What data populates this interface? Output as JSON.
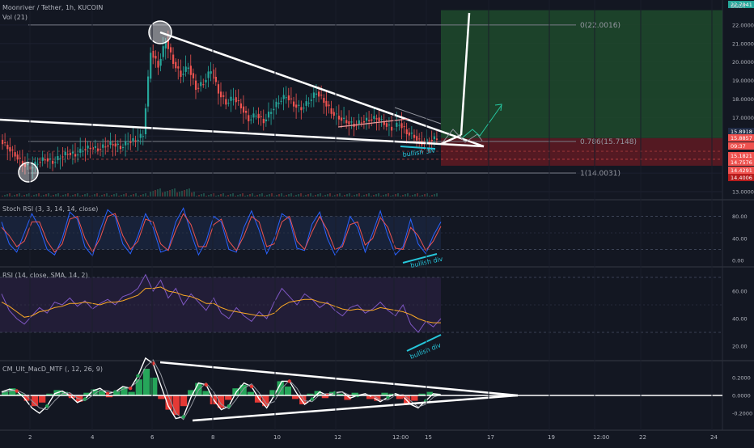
{
  "header": {
    "symbol": "Moonriver / Tether, 1h, KUCOIN",
    "volume": "Vol (21)",
    "currency": "USDT"
  },
  "colors": {
    "background": "#131722",
    "up": "#26a69a",
    "down": "#ef5350",
    "white_lines": "#ffffff",
    "fib_level": "#787b86",
    "target_zone": "#1e4a2c",
    "stop_zone": "#5c1a22",
    "stoch_k": "#2962ff",
    "stoch_d": "#ef5350",
    "rsi": "#7e57c2",
    "rsi_ma": "#f9a825",
    "annotation": "#26c6da",
    "macd_line": "#ffffff"
  },
  "chart_data": [
    {
      "type": "candlestick",
      "name": "price",
      "x_ticks": [
        "2",
        "4",
        "6",
        "8",
        "10",
        "12",
        "12:00",
        "15",
        "17",
        "19",
        "12:00",
        "22",
        "24"
      ],
      "y_ticks": [
        13.0,
        14.0,
        15.0,
        16.0,
        17.0,
        18.0,
        19.0,
        20.0,
        21.0,
        22.0
      ],
      "y_range": [
        13.0,
        22.8
      ],
      "price_labels": [
        {
          "text": "22.7941",
          "role": "target"
        },
        {
          "text": "15.8918",
          "role": "current"
        },
        {
          "text": "15.8857",
          "role": "entry"
        },
        {
          "text": "09:37",
          "role": "countdown"
        },
        {
          "text": "15.1821",
          "role": "level"
        },
        {
          "text": "14.7576",
          "role": "level"
        },
        {
          "text": "14.4291",
          "role": "level"
        },
        {
          "text": "14.4006",
          "role": "stop"
        }
      ],
      "fib_levels": [
        {
          "label": "0(22.0016)",
          "value": 22.0016
        },
        {
          "label": "0.786(15.7148)",
          "value": 15.7148
        },
        {
          "label": "1(14.0031)",
          "value": 14.0031
        }
      ],
      "annotations": [
        "bullish div"
      ],
      "path": [
        15.8,
        15.4,
        15.0,
        14.5,
        14.3,
        14.6,
        14.8,
        14.6,
        14.9,
        15.1,
        15.0,
        15.3,
        15.4,
        15.3,
        15.5,
        15.6,
        15.4,
        15.7,
        15.8,
        16.1,
        20.6,
        19.8,
        21.2,
        20.0,
        19.3,
        19.8,
        18.6,
        18.9,
        19.6,
        18.4,
        17.8,
        18.1,
        17.6,
        16.9,
        17.2,
        16.8,
        17.4,
        17.9,
        18.2,
        17.7,
        17.5,
        17.9,
        18.4,
        17.9,
        17.3,
        17.0,
        16.8,
        16.6,
        16.8,
        16.9,
        17.0,
        16.7,
        16.4,
        16.7,
        16.2,
        16.0,
        15.6,
        15.8,
        15.9
      ]
    },
    {
      "type": "line",
      "name": "Stoch RSI",
      "title": "Stoch RSI (3, 3, 14, 14, close)",
      "y_ticks": [
        0.0,
        40.0,
        80.0
      ],
      "annotations": [
        "bullish div"
      ],
      "series": [
        {
          "name": "K",
          "values": [
            70,
            30,
            15,
            50,
            85,
            60,
            20,
            10,
            40,
            88,
            75,
            25,
            8,
            55,
            92,
            80,
            30,
            12,
            45,
            85,
            60,
            15,
            20,
            70,
            95,
            50,
            10,
            35,
            80,
            70,
            20,
            15,
            60,
            90,
            55,
            12,
            40,
            85,
            75,
            22,
            18,
            66,
            88,
            40,
            10,
            30,
            80,
            60,
            15,
            50,
            90,
            45,
            10,
            25,
            75,
            30,
            12,
            45,
            70
          ]
        },
        {
          "name": "D",
          "values": [
            60,
            45,
            25,
            35,
            70,
            70,
            35,
            15,
            30,
            75,
            80,
            40,
            15,
            40,
            80,
            85,
            45,
            20,
            35,
            75,
            70,
            30,
            18,
            55,
            85,
            65,
            25,
            25,
            65,
            75,
            35,
            18,
            45,
            80,
            70,
            25,
            30,
            70,
            80,
            35,
            20,
            52,
            80,
            55,
            20,
            25,
            65,
            70,
            28,
            40,
            78,
            60,
            22,
            20,
            60,
            45,
            18,
            35,
            62
          ]
        }
      ]
    },
    {
      "type": "line",
      "name": "RSI",
      "title": "RSI (14, close, SMA, 14, 2)",
      "y_ticks": [
        20.0,
        40.0,
        60.0
      ],
      "annotations": [
        "bullish div"
      ],
      "series": [
        {
          "name": "RSI",
          "values": [
            58,
            46,
            40,
            36,
            42,
            48,
            44,
            52,
            50,
            55,
            49,
            53,
            47,
            51,
            54,
            50,
            56,
            58,
            62,
            72,
            60,
            68,
            55,
            62,
            50,
            58,
            52,
            46,
            55,
            44,
            40,
            48,
            42,
            38,
            45,
            40,
            52,
            62,
            56,
            50,
            58,
            54,
            48,
            52,
            46,
            42,
            48,
            50,
            44,
            47,
            52,
            46,
            42,
            50,
            36,
            30,
            38,
            34,
            40
          ]
        },
        {
          "name": "RSI-based MA",
          "values": [
            52,
            49,
            45,
            41,
            42,
            45,
            46,
            48,
            49,
            51,
            51,
            52,
            51,
            50,
            52,
            52,
            53,
            55,
            57,
            62,
            62,
            63,
            60,
            59,
            57,
            56,
            54,
            51,
            51,
            48,
            46,
            45,
            44,
            43,
            42,
            42,
            44,
            49,
            52,
            53,
            54,
            54,
            52,
            51,
            49,
            47,
            46,
            47,
            46,
            46,
            48,
            47,
            46,
            45,
            43,
            40,
            38,
            37,
            37
          ]
        }
      ]
    },
    {
      "type": "bar",
      "name": "MACD",
      "title": "CM_Ult_MacD_MTF (, 12, 26, 9)",
      "y_ticks": [
        -0.2,
        0.0,
        0.2
      ],
      "series": [
        {
          "name": "Histogram",
          "values": [
            0.05,
            0.08,
            0.02,
            -0.06,
            -0.12,
            -0.08,
            0.02,
            0.06,
            0.04,
            -0.03,
            -0.07,
            0.03,
            0.07,
            0.05,
            -0.02,
            0.05,
            0.09,
            0.04,
            0.18,
            0.3,
            0.2,
            -0.04,
            -0.16,
            -0.22,
            -0.12,
            0.06,
            0.14,
            0.05,
            -0.1,
            -0.14,
            -0.05,
            0.08,
            0.12,
            0.04,
            -0.08,
            -0.12,
            0.06,
            0.16,
            0.1,
            -0.04,
            -0.1,
            0.02,
            0.05,
            -0.03,
            0.04,
            0.02,
            -0.05,
            0.03,
            0.01,
            -0.04,
            -0.06,
            0.03,
            0.02,
            -0.04,
            -0.1,
            -0.06,
            0.02,
            0.04,
            0.02
          ]
        },
        {
          "name": "MACD",
          "values": [
            0.04,
            0.07,
            0.05,
            -0.03,
            -0.14,
            -0.2,
            -0.12,
            0.02,
            0.05,
            0.0,
            -0.08,
            -0.04,
            0.05,
            0.08,
            0.02,
            0.04,
            0.1,
            0.08,
            0.22,
            0.42,
            0.36,
            0.12,
            -0.12,
            -0.26,
            -0.24,
            -0.02,
            0.14,
            0.12,
            -0.05,
            -0.16,
            -0.12,
            0.04,
            0.14,
            0.1,
            -0.04,
            -0.14,
            0.0,
            0.16,
            0.16,
            0.02,
            -0.1,
            -0.04,
            0.04,
            0.0,
            0.03,
            0.04,
            -0.03,
            0.0,
            0.02,
            -0.02,
            -0.07,
            -0.02,
            0.02,
            -0.01,
            -0.1,
            -0.14,
            -0.06,
            0.02,
            0.01
          ]
        },
        {
          "name": "Signal",
          "values": [
            0.03,
            0.05,
            0.06,
            0.02,
            -0.06,
            -0.14,
            -0.16,
            -0.06,
            0.02,
            0.03,
            -0.03,
            -0.06,
            0.0,
            0.06,
            0.05,
            0.03,
            0.07,
            0.09,
            0.16,
            0.32,
            0.4,
            0.24,
            0.0,
            -0.2,
            -0.27,
            -0.12,
            0.06,
            0.14,
            0.04,
            -0.1,
            -0.15,
            -0.04,
            0.08,
            0.13,
            0.03,
            -0.1,
            -0.07,
            0.08,
            0.17,
            0.08,
            -0.06,
            -0.07,
            0.01,
            0.02,
            0.02,
            0.04,
            0.0,
            -0.01,
            0.01,
            0.0,
            -0.05,
            -0.05,
            0.0,
            0.01,
            -0.06,
            -0.13,
            -0.1,
            -0.02,
            0.01
          ]
        }
      ]
    }
  ]
}
